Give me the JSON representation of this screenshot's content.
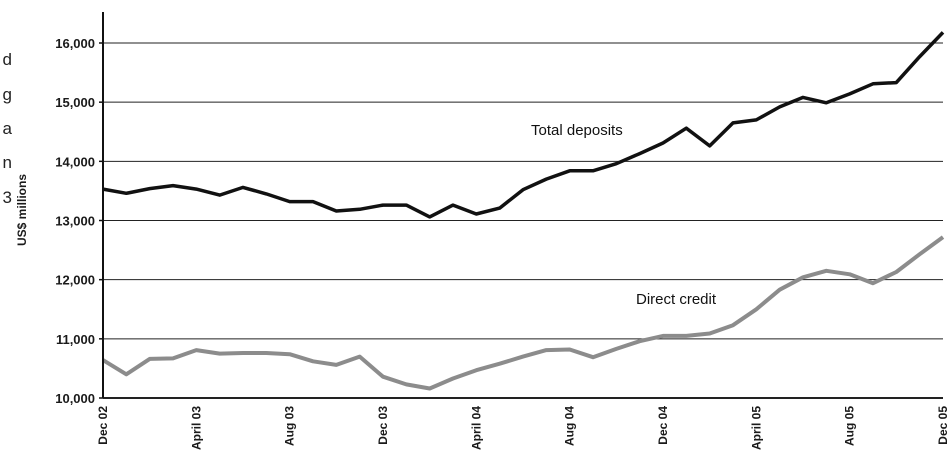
{
  "side_text": [
    "d",
    "g",
    "a",
    "n",
    "3"
  ],
  "chart_data": {
    "type": "line",
    "ylabel": "US$ millions",
    "ylim": [
      10000,
      16500
    ],
    "yticks": [
      10000,
      11000,
      12000,
      13000,
      14000,
      15000,
      16000
    ],
    "ytick_labels": [
      "10,000",
      "11,000",
      "12,000",
      "13,000",
      "14,000",
      "15,000",
      "16,000"
    ],
    "xtick_labels": [
      "Dec 02",
      "April 03",
      "Aug 03",
      "Dec 03",
      "April 04",
      "Aug 04",
      "Dec 04",
      "April 05",
      "Aug 05",
      "Dec 05"
    ],
    "xtick_index": [
      0,
      4,
      8,
      12,
      16,
      20,
      24,
      28,
      32,
      36
    ],
    "grid": true,
    "series": [
      {
        "name": "Total deposits",
        "color": "#111111",
        "values": [
          13530,
          13460,
          13540,
          13590,
          13530,
          13430,
          13560,
          13450,
          13320,
          13320,
          13160,
          13190,
          13260,
          13260,
          13060,
          13260,
          13110,
          13210,
          13520,
          13700,
          13840,
          13840,
          13960,
          14130,
          14310,
          14560,
          14260,
          14650,
          14700,
          14920,
          15080,
          14990,
          15140,
          15310,
          15330,
          15770,
          16180
        ]
      },
      {
        "name": "Direct credit",
        "color": "#8c8c8c",
        "values": [
          10640,
          10400,
          10660,
          10670,
          10810,
          10750,
          10760,
          10760,
          10740,
          10620,
          10560,
          10700,
          10360,
          10230,
          10160,
          10330,
          10470,
          10580,
          10700,
          10810,
          10820,
          10690,
          10830,
          10960,
          11050,
          11050,
          11090,
          11230,
          11500,
          11830,
          12040,
          12150,
          12090,
          11940,
          12130,
          12430,
          12720
        ]
      }
    ]
  }
}
